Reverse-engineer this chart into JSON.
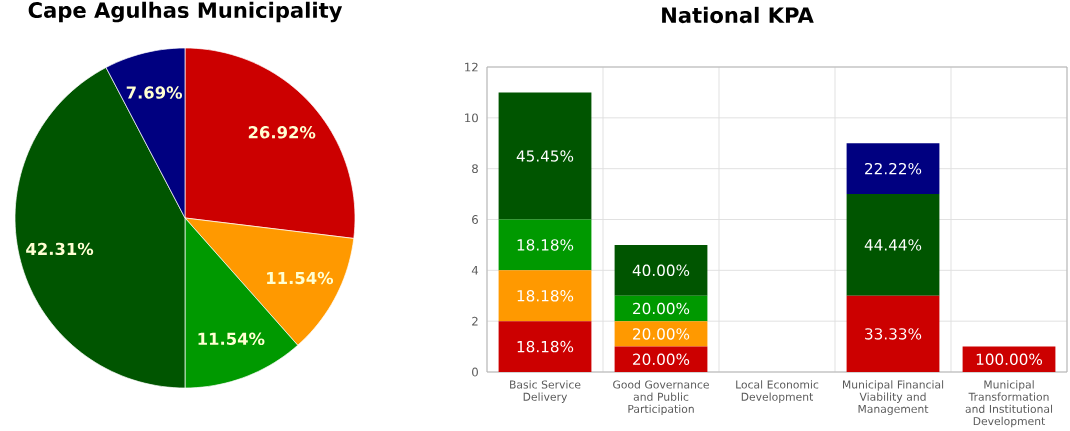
{
  "chart_data": [
    {
      "type": "pie",
      "title": "Cape Agulhas Municipality",
      "categories": [
        null,
        null,
        null,
        null,
        null
      ],
      "values": [
        26.92,
        11.54,
        11.54,
        42.31,
        7.69
      ],
      "colors": [
        "#cc0000",
        "#ff9900",
        "#009900",
        "#005500",
        "#000080"
      ],
      "value_labels": [
        "26.92%",
        "11.54%",
        "11.54%",
        "42.31%",
        "7.69%"
      ]
    },
    {
      "type": "bar",
      "title": "National KPA",
      "stacked": true,
      "categories": [
        "Basic Service Delivery",
        "Good Governance and Public Participation",
        "Local Economic Development",
        "Municipal Financial Viability and Management",
        "Municipal Transformation and Institutional Development"
      ],
      "ylim": [
        0,
        12
      ],
      "yticks": [
        0,
        2,
        4,
        6,
        8,
        10,
        12
      ],
      "grid": true,
      "series": [
        {
          "color": "#cc0000",
          "values": [
            2,
            1,
            0,
            3,
            1
          ]
        },
        {
          "color": "#ff9900",
          "values": [
            2,
            1,
            null,
            null,
            null
          ]
        },
        {
          "color": "#009900",
          "values": [
            2,
            1,
            null,
            null,
            null
          ]
        },
        {
          "color": "#005500",
          "values": [
            5,
            2,
            null,
            4,
            null
          ]
        },
        {
          "color": "#000080",
          "values": [
            null,
            null,
            null,
            2,
            null
          ]
        }
      ],
      "annotations": [
        "18.18%",
        "18.18%",
        "18.18%",
        "45.45%",
        "20.00%",
        "20.00%",
        "20.00%",
        "40.00%",
        "33.33%",
        "44.44%",
        "22.22%",
        "100.00%"
      ]
    }
  ]
}
